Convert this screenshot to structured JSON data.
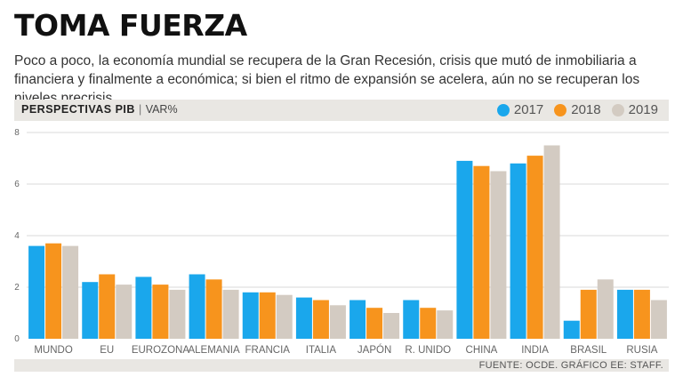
{
  "header": {
    "title": "TOMA FUERZA",
    "subtitle": "Poco a poco, la economía mundial se recupera de la Gran Recesión, crisis que mutó de inmobiliaria a financiera y finalmente a económica; si bien el ritmo de expansión se acelera, aún no se recuperan los niveles precrisis."
  },
  "band": {
    "label": "PERSPECTIVAS PIB",
    "separator": "|",
    "unit": "VAR%"
  },
  "colors": {
    "2017": "#1aa7ec",
    "2018": "#f7941d",
    "2019": "#d3cbc2",
    "grid": "#d9d9d9",
    "axis_text": "#666666"
  },
  "footer": {
    "source": "FUENTE: OCDE. GRÁFICO EE: STAFF."
  },
  "chart_data": {
    "type": "bar",
    "title": "PERSPECTIVAS PIB",
    "ylabel": "VAR%",
    "xlabel": "",
    "ylim": [
      0,
      8
    ],
    "yticks": [
      0,
      2,
      4,
      6,
      8
    ],
    "grid": true,
    "legend": "top-right",
    "categories": [
      "MUNDO",
      "EU",
      "EUROZONA",
      "ALEMANIA",
      "FRANCIA",
      "ITALIA",
      "JAPÓN",
      "R. UNIDO",
      "CHINA",
      "INDIA",
      "BRASIL",
      "RUSIA"
    ],
    "series": [
      {
        "name": "2017",
        "values": [
          3.6,
          2.2,
          2.4,
          2.5,
          1.8,
          1.6,
          1.5,
          1.5,
          6.9,
          6.8,
          0.7,
          1.9
        ]
      },
      {
        "name": "2018",
        "values": [
          3.7,
          2.5,
          2.1,
          2.3,
          1.8,
          1.5,
          1.2,
          1.2,
          6.7,
          7.1,
          1.9,
          1.9
        ]
      },
      {
        "name": "2019",
        "values": [
          3.6,
          2.1,
          1.9,
          1.9,
          1.7,
          1.3,
          1.0,
          1.1,
          6.5,
          7.5,
          2.3,
          1.5
        ]
      }
    ]
  }
}
